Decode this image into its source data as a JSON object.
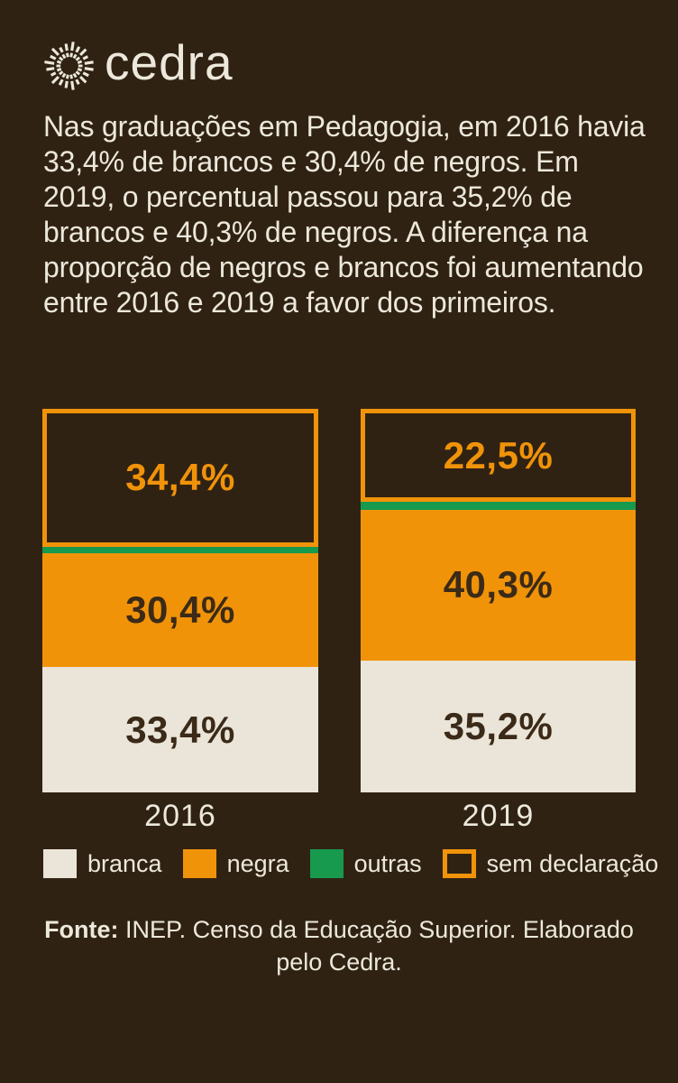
{
  "colors": {
    "background": "#302213",
    "cream": "#eae5d8",
    "orange": "#f09309",
    "green": "#17994e",
    "text_light": "#ece8db",
    "text_dark": "#3b2a18"
  },
  "logo": {
    "brand": "cedra",
    "icon": "sunburst-icon"
  },
  "intro": {
    "text": "Nas graduações em Pedagogia, em 2016 havia 33,4% de brancos e 30,4% de negros. Em 2019, o percentual passou para 35,2% de brancos e 40,3% de negros. A diferença na proporção de negros e brancos foi aumentando entre 2016 e 2019 a favor dos primeiros."
  },
  "chart_data": {
    "type": "bar",
    "stacked": true,
    "unit": "%",
    "categories": [
      "2016",
      "2019"
    ],
    "series": [
      {
        "name": "branca",
        "color": "#eae5d8",
        "values": [
          33.4,
          35.2
        ],
        "labels": [
          "33,4%",
          "35,2%"
        ]
      },
      {
        "name": "negra",
        "color": "#f09309",
        "values": [
          30.4,
          40.3
        ],
        "labels": [
          "30,4%",
          "40,3%"
        ]
      },
      {
        "name": "outras",
        "color": "#17994e",
        "values": [
          1.8,
          2.0
        ],
        "labels": [
          "",
          ""
        ]
      },
      {
        "name": "sem declaração",
        "color": "outline-#f09309",
        "values": [
          34.4,
          22.5
        ],
        "labels": [
          "34,4%",
          "22,5%"
        ]
      }
    ],
    "legend": [
      "branca",
      "negra",
      "outras",
      "sem declaração"
    ],
    "legend_position": "bottom",
    "ylim": [
      0,
      100
    ],
    "grid": false
  },
  "footer": {
    "source_label": "Fonte:",
    "source_text": " INEP. Censo da Educação Superior. Elaborado pelo Cedra."
  }
}
